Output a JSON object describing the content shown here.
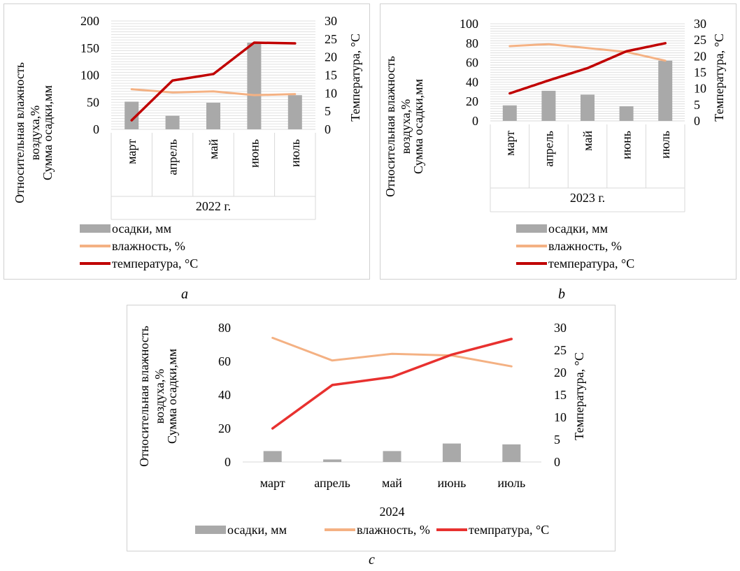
{
  "captions": {
    "a": "a",
    "b": "b",
    "c": "c"
  },
  "colors": {
    "precip": "#a9a9a9",
    "gridline": "#d9d9d9",
    "humidity": "#f4b183",
    "temp_dark": "#c00000",
    "temp_bright": "#e8312f"
  },
  "chart_data": [
    {
      "type": "bar",
      "panel": "a",
      "categories": [
        "март",
        "апрель",
        "май",
        "июнь",
        "июль"
      ],
      "group_label": "2022 г.",
      "ylabel_left": [
        "Относительная влажность",
        "воздуха,%",
        "Сумма осадки,мм"
      ],
      "ylabel_right": "Температура,  °С",
      "ylim_left": [
        0,
        200
      ],
      "yticks_left": [
        0,
        50,
        100,
        150,
        200
      ],
      "ylim_right": [
        0,
        30
      ],
      "yticks_right": [
        0,
        5,
        10,
        15,
        20,
        25,
        30
      ],
      "grid": true,
      "legend_placement": "bottom",
      "series": [
        {
          "name": "осадки, мм",
          "kind": "bar",
          "axis": "left",
          "values": [
            51,
            25,
            49,
            160,
            63
          ]
        },
        {
          "name": "влажность, %",
          "kind": "line",
          "axis": "left",
          "values": [
            74,
            68,
            70,
            63,
            65
          ]
        },
        {
          "name": "температура,  °С",
          "kind": "line",
          "axis": "right",
          "values": [
            2.5,
            13.5,
            15.3,
            24,
            23.8
          ]
        }
      ]
    },
    {
      "type": "bar",
      "panel": "b",
      "categories": [
        "март",
        "апрель",
        "май",
        "июнь",
        "июль"
      ],
      "group_label": "2023 г.",
      "ylabel_left": [
        "Относительная влажность",
        "воздуха,%",
        "Сумма осадки,мм"
      ],
      "ylabel_right": "Температура,  °С",
      "ylim_left": [
        0,
        100
      ],
      "yticks_left": [
        0,
        20,
        40,
        60,
        80,
        100
      ],
      "ylim_right": [
        0,
        30
      ],
      "yticks_right": [
        0,
        5,
        10,
        15,
        20,
        25,
        30
      ],
      "grid": true,
      "legend_placement": "bottom",
      "series": [
        {
          "name": "осадки, мм",
          "kind": "bar",
          "axis": "left",
          "values": [
            16,
            31,
            27,
            15,
            62
          ]
        },
        {
          "name": "влажность, %",
          "kind": "line",
          "axis": "left",
          "values": [
            77,
            79,
            75,
            71,
            62
          ]
        },
        {
          "name": "температура,  °С",
          "kind": "line",
          "axis": "right",
          "values": [
            8.5,
            12.5,
            16.3,
            21.5,
            24
          ]
        }
      ]
    },
    {
      "type": "bar",
      "panel": "c",
      "categories": [
        "март",
        "апрель",
        "май",
        "июнь",
        "июль"
      ],
      "group_label": "2024",
      "ylabel_left": [
        "Относительная влажность",
        "воздуха,%",
        "Сумма осадки,мм"
      ],
      "ylabel_right": "Температура, °С",
      "ylim_left": [
        0,
        80
      ],
      "yticks_left": [
        0,
        20,
        40,
        60,
        80
      ],
      "ylim_right": [
        0,
        30
      ],
      "yticks_right": [
        0,
        5,
        10,
        15,
        20,
        25,
        30
      ],
      "grid": false,
      "legend_placement": "bottom",
      "series": [
        {
          "name": "осадки, мм",
          "kind": "bar",
          "axis": "left",
          "values": [
            6.5,
            1.5,
            6.5,
            11,
            10.5
          ]
        },
        {
          "name": "влажность, %",
          "kind": "line",
          "axis": "left",
          "values": [
            74,
            60.5,
            64.5,
            63.5,
            57
          ]
        },
        {
          "name": "темпратура, °С",
          "kind": "line",
          "axis": "right",
          "values": [
            7.5,
            17.2,
            19,
            24,
            27.5
          ]
        }
      ]
    }
  ]
}
